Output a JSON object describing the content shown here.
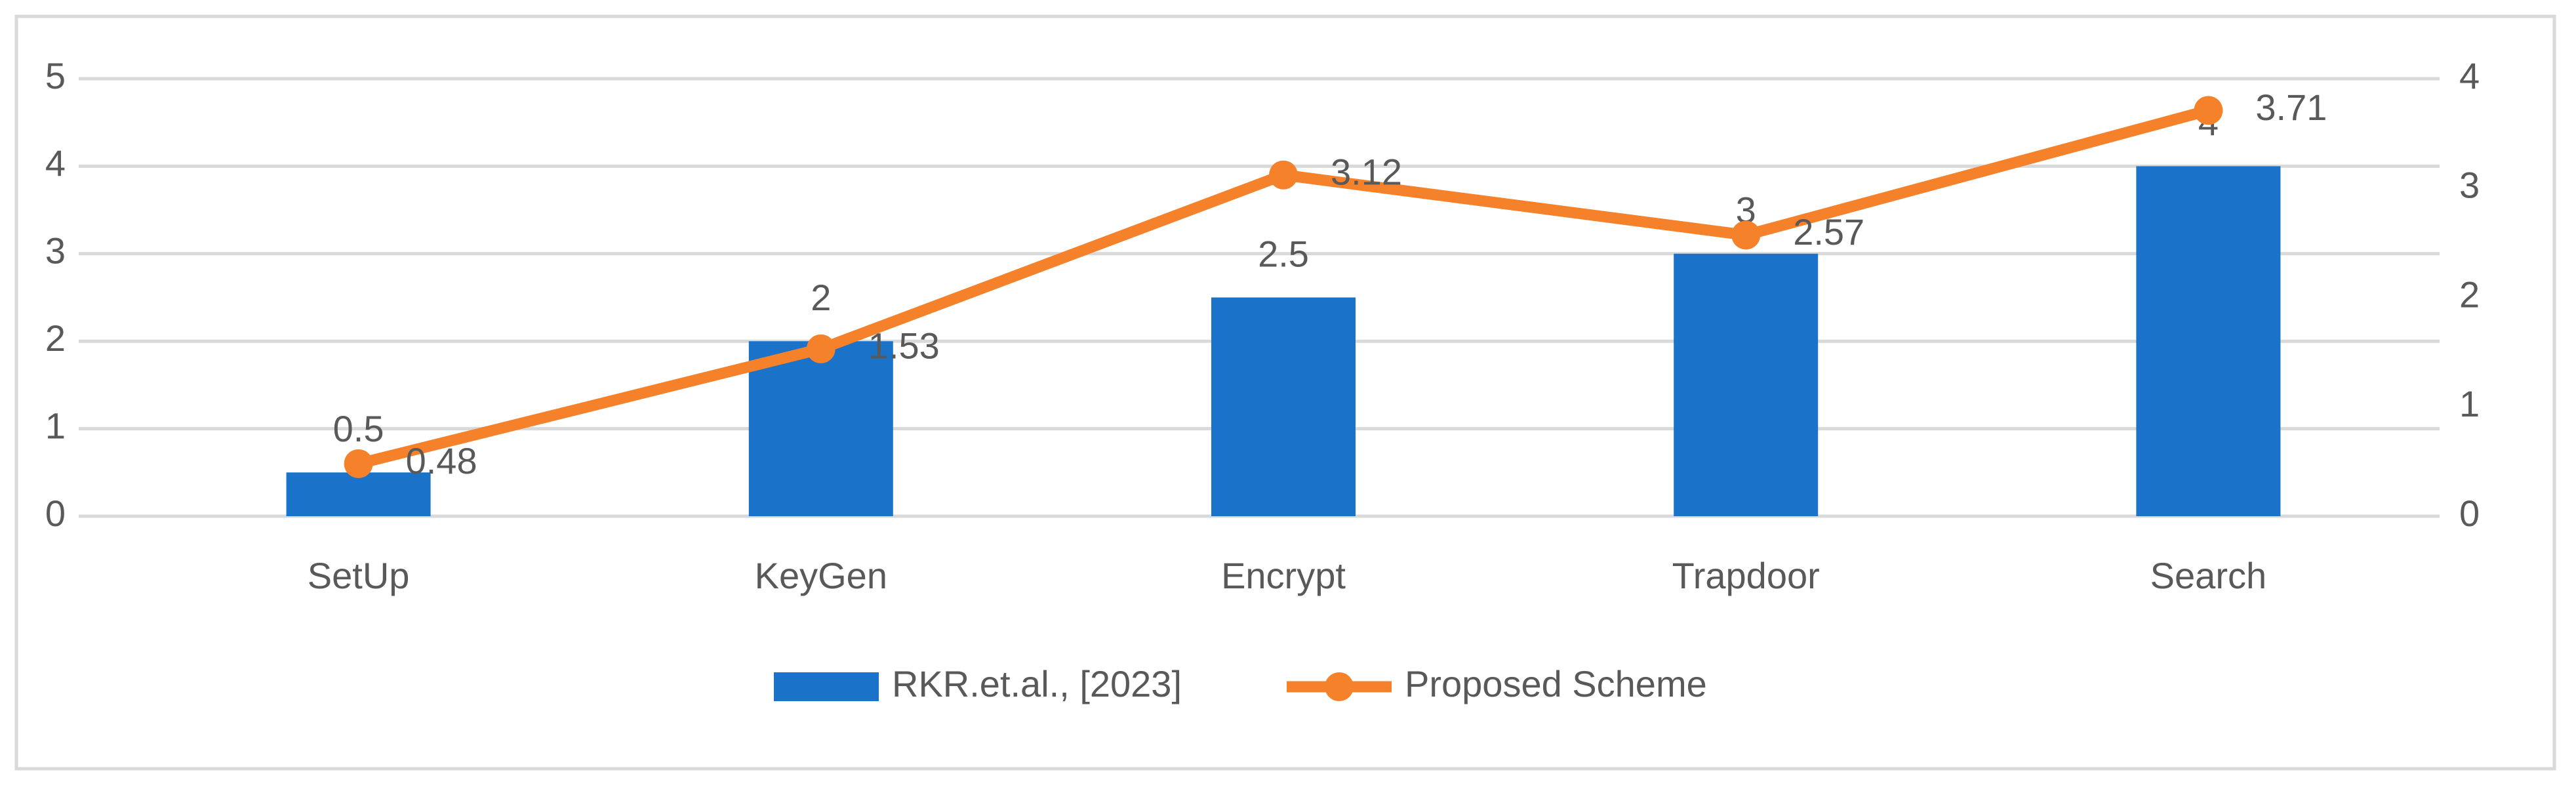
{
  "chart_data": {
    "type": "bar_line",
    "categories": [
      "SetUp",
      "KeyGen",
      "Encrypt",
      "Trapdoor",
      "Search"
    ],
    "series": [
      {
        "name": "RKR.et.al., [2023]",
        "type": "bar",
        "color": "#1a73c8",
        "values": [
          0.5,
          2,
          2.5,
          3,
          4
        ]
      },
      {
        "name": "Proposed Scheme",
        "type": "line",
        "axis": "y2",
        "color": "#f5822a",
        "values": [
          0.48,
          1.53,
          3.12,
          2.57,
          3.71
        ]
      }
    ],
    "ylim": [
      0,
      5
    ],
    "yticks": [
      0,
      1,
      2,
      3,
      4,
      5
    ],
    "y2lim": [
      0,
      4
    ],
    "y2ticks": [
      0,
      1,
      2,
      3,
      4
    ],
    "grid": true,
    "legend": "bottom"
  }
}
